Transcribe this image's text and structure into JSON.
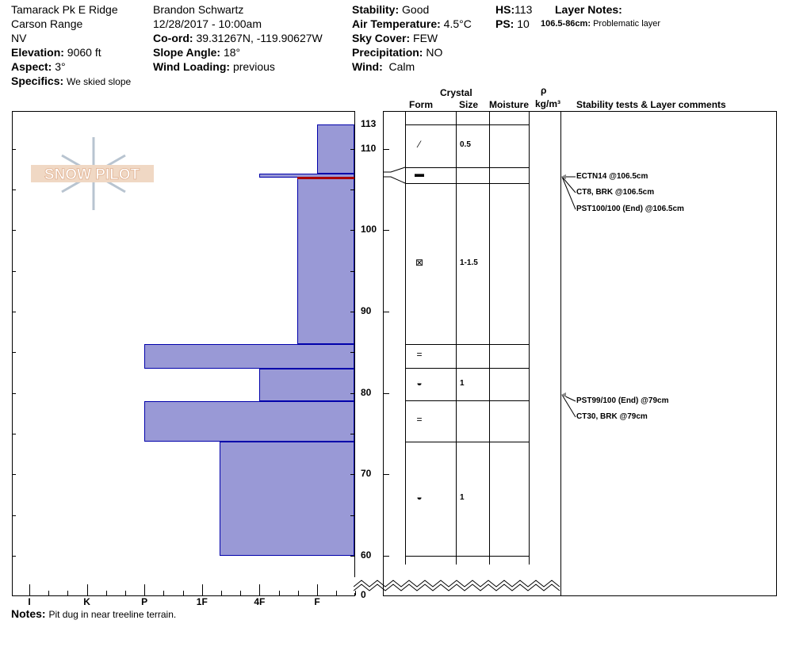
{
  "header": {
    "location": "Tamarack Pk E Ridge",
    "range": "Carson Range",
    "state": "NV",
    "elevation_label": "Elevation:",
    "elevation": "9060 ft",
    "aspect_label": "Aspect:",
    "aspect": "3°",
    "specifics_label": "Specifics:",
    "specifics": "We skied slope",
    "observer": "Brandon Schwartz",
    "datetime": "12/28/2017 - 10:00am",
    "coord_label": "Co-ord:",
    "coord": "39.31267N, -119.90627W",
    "slope_label": "Slope Angle:",
    "slope": "18°",
    "wind_loading_label": "Wind Loading:",
    "wind_loading": "previous",
    "stability_label": "Stability:",
    "stability": "Good",
    "air_temp_label": "Air Temperature:",
    "air_temp": "4.5°C",
    "sky_label": "Sky Cover:",
    "sky": "FEW",
    "precip_label": "Precipitation:",
    "precip": "NO",
    "wind_label": "Wind:",
    "wind": "Calm",
    "hs_label": "HS:",
    "hs": "113",
    "ps_label": "PS:",
    "ps": "10",
    "layer_notes_label": "Layer Notes:",
    "layer_note_range": "106.5-86cm:",
    "layer_note_text": "Problematic layer"
  },
  "columns": {
    "crystal": "Crystal",
    "form": "Form",
    "size": "Size",
    "moisture": "Moisture",
    "rho": "ρ",
    "density": "kg/m³",
    "comments": "Stability tests & Layer comments"
  },
  "logo": "SNOW PILOT",
  "notes_label": "Notes:",
  "notes": "Pit dug in near treeline terrain.",
  "colors": {
    "layer": "#9999d6",
    "layer_border": "#0000aa",
    "critical": "#aa0000"
  },
  "chart_data": {
    "type": "bar",
    "depth_range": [
      60,
      113
    ],
    "depth_ticks": [
      "113",
      "110",
      "100",
      "90",
      "80",
      "70",
      "60",
      "0"
    ],
    "hardness_labels": [
      "I",
      "K",
      "P",
      "1F",
      "4F",
      "F"
    ],
    "critical_depth": 106.5,
    "layers": [
      {
        "top": 113,
        "bottom": 107,
        "hardness": "F",
        "hardness_index": 5,
        "form": "⁄",
        "size": "0.5"
      },
      {
        "top": 107,
        "bottom": 106.5,
        "hardness": "4F",
        "hardness_index": 4,
        "form": "▬",
        "size": ""
      },
      {
        "top": 106.5,
        "bottom": 86,
        "hardness": "F+",
        "hardness_index": 4.65,
        "form": "⊠",
        "size": "1-1.5"
      },
      {
        "top": 86,
        "bottom": 83,
        "hardness": "P",
        "hardness_index": 2,
        "form": "=",
        "size": ""
      },
      {
        "top": 83,
        "bottom": 79,
        "hardness": "4F",
        "hardness_index": 4,
        "form": "◒",
        "size": "1"
      },
      {
        "top": 79,
        "bottom": 74,
        "hardness": "P",
        "hardness_index": 2,
        "form": "=",
        "size": ""
      },
      {
        "top": 74,
        "bottom": 60,
        "hardness": "1F+",
        "hardness_index": 3.3,
        "form": "◒",
        "size": "1"
      }
    ],
    "tests": [
      {
        "text": "ECTN14 @106.5cm",
        "depth": 106.5
      },
      {
        "text": "CT8, BRK @106.5cm",
        "depth": 106.5
      },
      {
        "text": "PST100/100 (End) @106.5cm",
        "depth": 106.5
      },
      {
        "text": "PST99/100 (End) @79cm",
        "depth": 79
      },
      {
        "text": "CT30, BRK @79cm",
        "depth": 79
      }
    ]
  }
}
